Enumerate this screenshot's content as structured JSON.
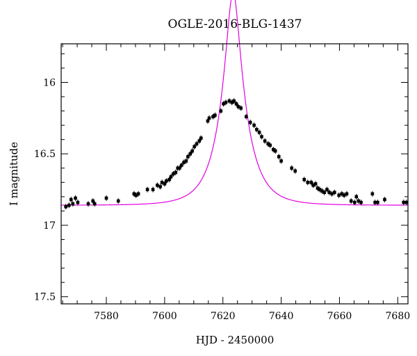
{
  "chart_data": {
    "type": "scatter",
    "title": "OGLE-2016-BLG-1437",
    "xlabel": "HJD - 2450000",
    "ylabel": "I magnitude",
    "xlim": [
      7564.5,
      7683.5
    ],
    "ylim": [
      15.73,
      17.55
    ],
    "y_inverted": true,
    "x_ticks": [
      7580,
      7600,
      7620,
      7640,
      7660,
      7680
    ],
    "y_ticks": [
      16,
      16.5,
      17,
      17.5
    ],
    "x_tick_labels": [
      "7580",
      "7600",
      "7620",
      "7640",
      "7660",
      "7680"
    ],
    "y_tick_labels": [
      "16",
      "16.5",
      "17",
      "17.5"
    ],
    "grid": false,
    "colors": {
      "points": "#000000",
      "model": "#e000e0"
    },
    "series": [
      {
        "kind": "points",
        "x": [
          7566.1,
          7567.2,
          7567.9,
          7568.5,
          7569.4,
          7570.2,
          7573.8,
          7575.4,
          7576.0,
          7580.0,
          7584.1,
          7589.5,
          7590.2,
          7591.0,
          7594.1,
          7596.0,
          7597.5,
          7598.5,
          7599.1,
          7600.0,
          7600.6,
          7601.6,
          7602.2,
          7603.0,
          7603.8,
          7604.5,
          7605.1,
          7605.8,
          7606.6,
          7607.4,
          7608.0,
          7608.8,
          7609.5,
          7610.2,
          7611.0,
          7611.9,
          7612.5,
          7614.8,
          7615.3,
          7616.6,
          7617.3,
          7619.3,
          7620.2,
          7621.0,
          7622.2,
          7623.1,
          7623.8,
          7624.6,
          7625.3,
          7626.2,
          7628.0,
          7629.4,
          7630.7,
          7631.6,
          7632.5,
          7633.3,
          7634.4,
          7635.5,
          7636.2,
          7637.3,
          7638.0,
          7639.2,
          7640.0,
          7643.6,
          7644.8,
          7647.9,
          7649.1,
          7650.3,
          7651.0,
          7651.8,
          7652.5,
          7653.2,
          7654.0,
          7654.8,
          7655.7,
          7656.5,
          7657.4,
          7658.3,
          7659.8,
          7660.8,
          7661.6,
          7662.5,
          7664.0,
          7665.2,
          7665.8,
          7666.5,
          7667.4,
          7671.3,
          7672.2,
          7673.1,
          7675.5,
          7682.0,
          7683.0
        ],
        "y": [
          16.87,
          16.86,
          16.82,
          16.85,
          16.81,
          16.84,
          16.85,
          16.83,
          16.85,
          16.81,
          16.83,
          16.78,
          16.79,
          16.78,
          16.75,
          16.75,
          16.72,
          16.73,
          16.7,
          16.71,
          16.69,
          16.68,
          16.66,
          16.64,
          16.63,
          16.6,
          16.6,
          16.58,
          16.56,
          16.55,
          16.52,
          16.5,
          16.48,
          16.45,
          16.43,
          16.41,
          16.39,
          16.27,
          16.25,
          16.24,
          16.23,
          16.2,
          16.15,
          16.14,
          16.13,
          16.14,
          16.13,
          16.15,
          16.17,
          16.18,
          16.24,
          16.28,
          16.3,
          16.33,
          16.35,
          16.38,
          16.41,
          16.43,
          16.44,
          16.47,
          16.48,
          16.52,
          16.55,
          16.6,
          16.62,
          16.68,
          16.7,
          16.7,
          16.72,
          16.71,
          16.74,
          16.75,
          16.76,
          16.77,
          16.75,
          16.77,
          16.78,
          16.77,
          16.79,
          16.78,
          16.79,
          16.78,
          16.83,
          16.84,
          16.8,
          16.83,
          16.84,
          16.78,
          16.84,
          16.84,
          16.82,
          16.84,
          16.84
        ]
      },
      {
        "kind": "model-curve",
        "model": {
          "t0": 7623.5,
          "tE": 8.3,
          "u0": 0.26,
          "I_base": 16.86
        }
      }
    ]
  }
}
